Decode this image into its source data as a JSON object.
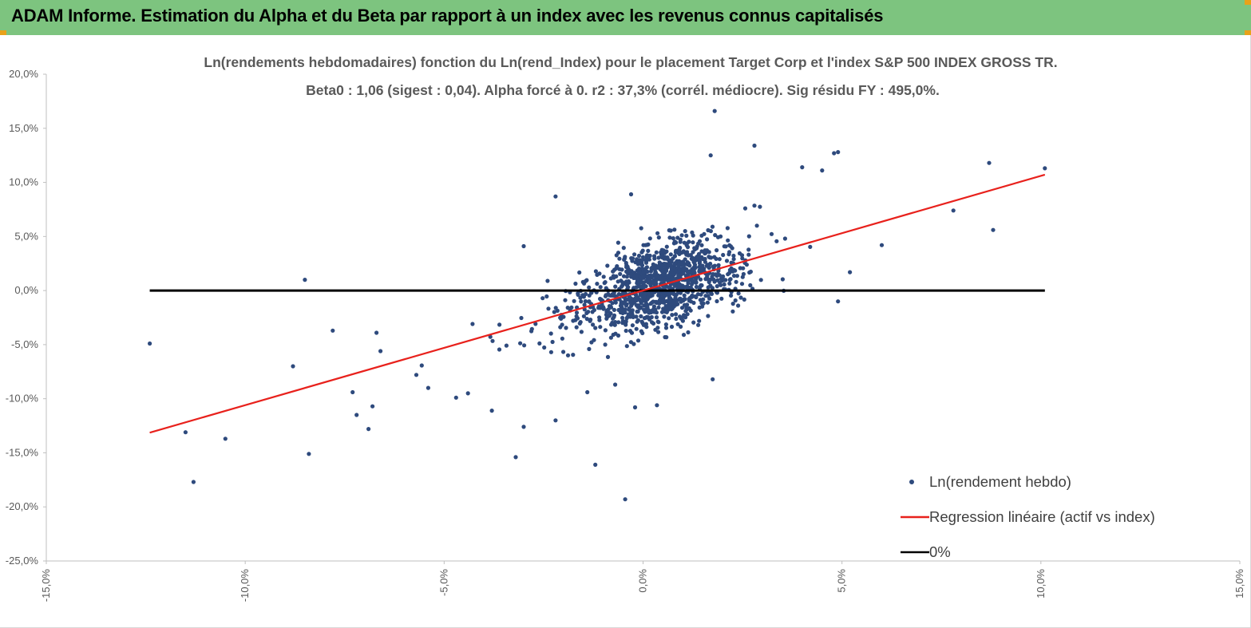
{
  "header": {
    "title": "ADAM Informe. Estimation du Alpha et du Beta par rapport à un index avec les revenus connus capitalisés"
  },
  "colors": {
    "banner": "#7dc47f",
    "accent_corner": "#e8a21a",
    "points": "#2e4a7d",
    "regression": "#e8211c",
    "zero_line": "#000000"
  },
  "chart_data": {
    "type": "scatter",
    "title": "Ln(rendements hebdomadaires) fonction du Ln(rend_Index) pour le placement Target Corp et l'index S&P 500 INDEX GROSS TR.",
    "subtitle": "Beta0 : 1,06  (sigest : 0,04). Alpha forcé à 0. r2 : 37,3% (corrél. médiocre). Sig résidu FY : 495,0%.",
    "xlim": [
      -15,
      15
    ],
    "ylim": [
      -25,
      20
    ],
    "x_ticks": [
      "-15,0%",
      "-10,0%",
      "-5,0%",
      "0,0%",
      "5,0%",
      "10,0%",
      "15,0%"
    ],
    "y_ticks": [
      "20,0%",
      "15,0%",
      "10,0%",
      "5,0%",
      "0,0%",
      "-5,0%",
      "-10,0%",
      "-15,0%",
      "-20,0%",
      "-25,0%"
    ],
    "grid": false,
    "legend_position": "bottom-right",
    "series": [
      {
        "name": "Ln(rendement hebdo)",
        "kind": "scatter",
        "notable_points": [
          [
            -12.4,
            -4.9
          ],
          [
            -11.5,
            -13.1
          ],
          [
            -11.3,
            -17.7
          ],
          [
            -10.5,
            -13.7
          ],
          [
            -8.5,
            1.0
          ],
          [
            -8.4,
            -15.1
          ],
          [
            -8.8,
            -7.0
          ],
          [
            -7.8,
            -3.7
          ],
          [
            -7.3,
            -9.4
          ],
          [
            -7.2,
            -11.5
          ],
          [
            -6.9,
            -12.8
          ],
          [
            -6.8,
            -10.7
          ],
          [
            -6.7,
            -3.9
          ],
          [
            -6.6,
            -5.6
          ],
          [
            -5.7,
            -7.8
          ],
          [
            -5.4,
            -9.0
          ],
          [
            -4.7,
            -9.9
          ],
          [
            -4.4,
            -9.5
          ],
          [
            -3.8,
            -11.1
          ],
          [
            -3.0,
            -12.6
          ],
          [
            -3.2,
            -15.4
          ],
          [
            -3.0,
            4.1
          ],
          [
            -2.2,
            8.7
          ],
          [
            -2.2,
            -12.0
          ],
          [
            -1.4,
            -9.4
          ],
          [
            -1.2,
            -16.1
          ],
          [
            -0.45,
            -19.3
          ],
          [
            -0.3,
            8.9
          ],
          [
            -0.2,
            -10.8
          ],
          [
            0.35,
            -10.6
          ],
          [
            1.8,
            16.6
          ],
          [
            1.7,
            12.5
          ],
          [
            2.8,
            13.4
          ],
          [
            4.0,
            11.4
          ],
          [
            4.8,
            12.7
          ],
          [
            4.9,
            12.8
          ],
          [
            4.5,
            11.1
          ],
          [
            4.9,
            -1.0
          ],
          [
            5.2,
            1.7
          ],
          [
            6.0,
            4.2
          ],
          [
            7.8,
            7.4
          ],
          [
            8.7,
            11.8
          ],
          [
            8.8,
            5.6
          ],
          [
            10.1,
            11.3
          ],
          [
            1.75,
            -8.2
          ],
          [
            -0.7,
            -8.7
          ]
        ]
      },
      {
        "name": "Regression linéaire (actif vs index)",
        "kind": "line",
        "x": [
          -12.4,
          10.1
        ],
        "y": [
          -13.14,
          10.71
        ]
      },
      {
        "name": "0%",
        "kind": "line",
        "x": [
          -12.4,
          10.1
        ],
        "y": [
          0,
          0
        ]
      }
    ]
  }
}
